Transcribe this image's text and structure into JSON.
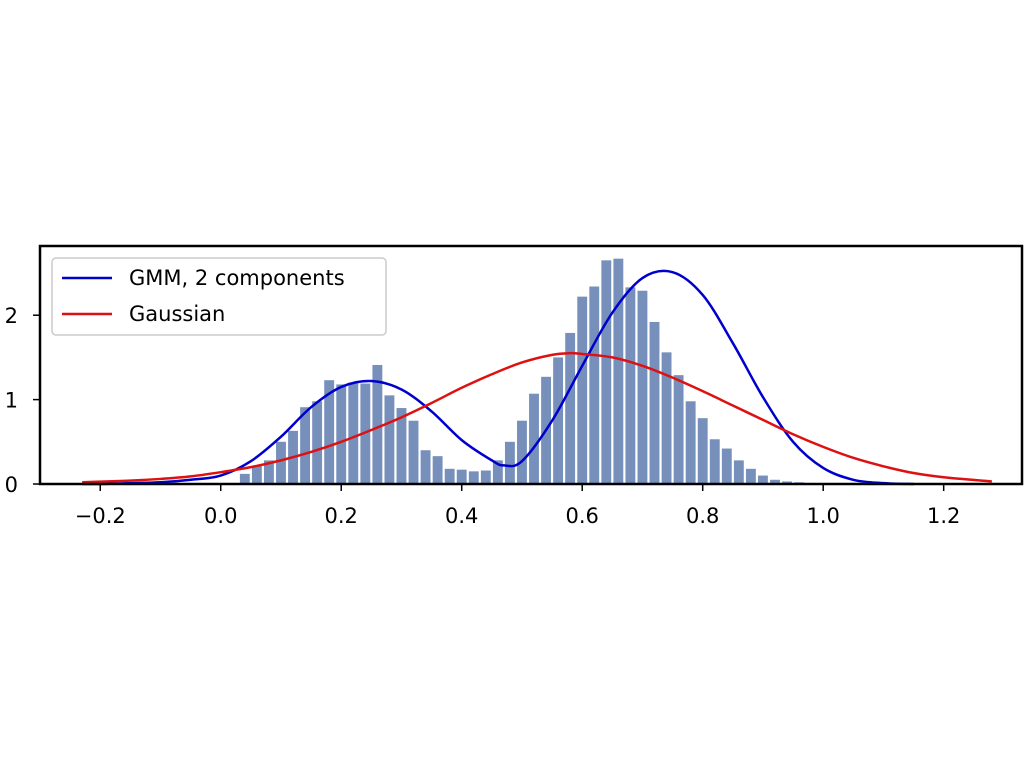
{
  "chart_data": {
    "type": "bar",
    "title": "",
    "xlabel": "",
    "ylabel": "",
    "xlim": [
      -0.3,
      1.33
    ],
    "ylim": [
      0,
      2.82
    ],
    "x_ticks": [
      {
        "value": -0.2,
        "label": "−0.2"
      },
      {
        "value": 0.0,
        "label": "0.0"
      },
      {
        "value": 0.2,
        "label": "0.2"
      },
      {
        "value": 0.4,
        "label": "0.4"
      },
      {
        "value": 0.6,
        "label": "0.6"
      },
      {
        "value": 0.8,
        "label": "0.8"
      },
      {
        "value": 1.0,
        "label": "1.0"
      },
      {
        "value": 1.2,
        "label": "1.2"
      }
    ],
    "y_ticks": [
      {
        "value": 0,
        "label": "0"
      },
      {
        "value": 1,
        "label": "1"
      },
      {
        "value": 2,
        "label": "2"
      }
    ],
    "grid": false,
    "legend": {
      "placement": "top-left",
      "entries": [
        {
          "label": "GMM, 2 components",
          "color": "#0000cc"
        },
        {
          "label": "Gaussian",
          "color": "#dd1111"
        }
      ]
    },
    "histogram": {
      "color": "#7790bb",
      "bin_width": 0.02,
      "bin_starts": [
        0.03,
        0.05,
        0.07,
        0.09,
        0.11,
        0.13,
        0.15,
        0.17,
        0.19,
        0.21,
        0.23,
        0.25,
        0.27,
        0.29,
        0.31,
        0.33,
        0.35,
        0.37,
        0.39,
        0.41,
        0.43,
        0.45,
        0.47,
        0.49,
        0.51,
        0.53,
        0.55,
        0.57,
        0.59,
        0.61,
        0.63,
        0.65,
        0.67,
        0.69,
        0.71,
        0.73,
        0.75,
        0.77,
        0.79,
        0.81,
        0.83,
        0.85,
        0.87,
        0.89,
        0.91,
        0.93,
        0.95,
        0.97,
        0.99,
        1.01,
        1.03
      ],
      "values": [
        0.12,
        0.22,
        0.28,
        0.5,
        0.63,
        0.91,
        0.98,
        1.23,
        1.18,
        1.2,
        1.19,
        1.41,
        1.05,
        0.9,
        0.75,
        0.4,
        0.33,
        0.18,
        0.17,
        0.15,
        0.16,
        0.28,
        0.5,
        0.75,
        1.07,
        1.27,
        1.5,
        1.79,
        2.22,
        2.34,
        2.65,
        2.67,
        2.33,
        2.29,
        1.92,
        1.56,
        1.29,
        0.98,
        0.78,
        0.53,
        0.42,
        0.28,
        0.18,
        0.1,
        0.05,
        0.03,
        0.02,
        0.01,
        0.01,
        0.01,
        0.01
      ]
    },
    "series": [
      {
        "name": "GMM, 2 components",
        "color": "#0000cc",
        "x": [
          -0.23,
          -0.2,
          -0.15,
          -0.1,
          -0.05,
          0.0,
          0.05,
          0.1,
          0.15,
          0.2,
          0.25,
          0.3,
          0.35,
          0.4,
          0.45,
          0.47,
          0.5,
          0.55,
          0.6,
          0.65,
          0.7,
          0.75,
          0.8,
          0.85,
          0.9,
          0.95,
          1.0,
          1.05,
          1.1,
          1.15
        ],
        "y": [
          0.0,
          0.0,
          0.01,
          0.02,
          0.05,
          0.1,
          0.27,
          0.56,
          0.91,
          1.15,
          1.22,
          1.12,
          0.86,
          0.52,
          0.28,
          0.22,
          0.27,
          0.75,
          1.4,
          2.03,
          2.44,
          2.51,
          2.24,
          1.67,
          1.03,
          0.5,
          0.19,
          0.05,
          0.01,
          0.0
        ]
      },
      {
        "name": "Gaussian",
        "color": "#dd1111",
        "x": [
          -0.23,
          -0.15,
          -0.1,
          -0.05,
          0.0,
          0.05,
          0.1,
          0.15,
          0.2,
          0.25,
          0.3,
          0.35,
          0.4,
          0.45,
          0.5,
          0.55,
          0.58,
          0.6,
          0.65,
          0.7,
          0.75,
          0.8,
          0.85,
          0.9,
          0.95,
          1.0,
          1.05,
          1.1,
          1.15,
          1.2,
          1.28
        ],
        "y": [
          0.02,
          0.04,
          0.06,
          0.09,
          0.14,
          0.2,
          0.28,
          0.38,
          0.5,
          0.64,
          0.79,
          0.96,
          1.14,
          1.3,
          1.44,
          1.53,
          1.55,
          1.54,
          1.5,
          1.4,
          1.26,
          1.1,
          0.93,
          0.76,
          0.59,
          0.44,
          0.31,
          0.21,
          0.13,
          0.08,
          0.03
        ]
      }
    ]
  }
}
